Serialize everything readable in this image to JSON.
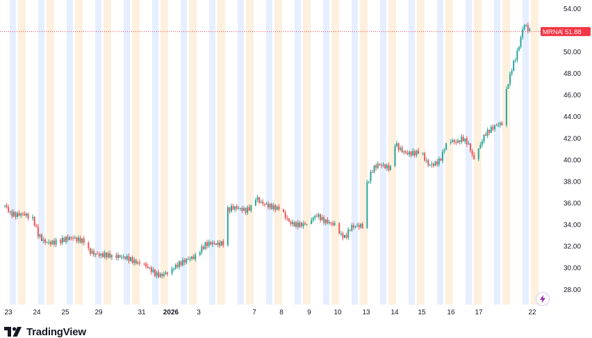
{
  "chart_data": {
    "type": "candlestick",
    "symbol": "MRNA",
    "last_price": "51.88",
    "y_range": [
      26.6,
      54.8
    ],
    "y_ticks": [
      "54.00",
      "52.00",
      "50.00",
      "48.00",
      "46.00",
      "44.00",
      "42.00",
      "40.00",
      "38.00",
      "36.00",
      "34.00",
      "32.00",
      "30.00",
      "28.00"
    ],
    "x_labels": [
      "23",
      "24",
      "25",
      "29",
      "31",
      "2026",
      "3",
      "7",
      "8",
      "9",
      "10",
      "13",
      "14",
      "15",
      "16",
      "17",
      "22"
    ],
    "bold_x_labels": [
      "2026"
    ],
    "colors": {
      "up": "#26a69a",
      "down": "#ef5350",
      "price_line": "#f23645",
      "session_pre": "#fdf0de",
      "session_post": "#e6efff"
    },
    "segments": [
      {
        "label": "23",
        "values": [
          35.8,
          35.0,
          34.9,
          35.0,
          34.8
        ]
      },
      {
        "label": "24",
        "values": [
          34.6,
          33.0,
          32.4,
          32.3,
          32.4
        ]
      },
      {
        "label": "25",
        "values": [
          32.5,
          32.7,
          32.8,
          32.6,
          32.5
        ]
      },
      {
        "label": "29",
        "values": [
          31.6,
          31.3,
          31.2,
          31.2,
          31.1
        ]
      },
      {
        "label": "31",
        "values": [
          31.1,
          31.0,
          30.9,
          30.6,
          30.4
        ]
      },
      {
        "label": "2026",
        "values": [
          30.3,
          29.9,
          29.4,
          29.3,
          29.6
        ]
      },
      {
        "label": "3",
        "values": [
          29.9,
          30.3,
          30.6,
          30.9,
          31.0
        ]
      },
      {
        "label": "3b",
        "values": [
          31.6,
          32.2,
          32.3,
          32.2,
          32.3
        ]
      },
      {
        "label": "7",
        "values": [
          35.4,
          35.6,
          35.5,
          35.3,
          35.6
        ]
      },
      {
        "label": "8",
        "values": [
          36.5,
          36.0,
          35.8,
          35.6,
          35.5
        ]
      },
      {
        "label": "9",
        "values": [
          35.0,
          34.2,
          34.0,
          34.0,
          34.1
        ]
      },
      {
        "label": "10",
        "values": [
          34.5,
          34.9,
          34.4,
          34.2,
          34.0
        ]
      },
      {
        "label": "13",
        "values": [
          33.2,
          32.8,
          33.8,
          33.9,
          33.9
        ]
      },
      {
        "label": "14",
        "values": [
          37.8,
          39.2,
          39.6,
          39.4,
          39.2
        ]
      },
      {
        "label": "15",
        "values": [
          41.5,
          40.9,
          40.6,
          40.6,
          40.7
        ]
      },
      {
        "label": "16",
        "values": [
          40.4,
          39.5,
          39.6,
          40.0,
          41.5
        ]
      },
      {
        "label": "17",
        "values": [
          41.8,
          41.6,
          42.0,
          41.5,
          40.0
        ]
      },
      {
        "label": "17b",
        "values": [
          41.0,
          42.3,
          42.8,
          43.2,
          43.4
        ]
      },
      {
        "label": "22",
        "values": [
          46.5,
          48.6,
          50.2,
          52.6,
          51.9
        ]
      }
    ],
    "grid": false,
    "legend": "none"
  },
  "branding": {
    "name": "TradingView"
  },
  "icons": {
    "brand": "tradingview-logo-icon",
    "lightning": "lightning-icon"
  }
}
